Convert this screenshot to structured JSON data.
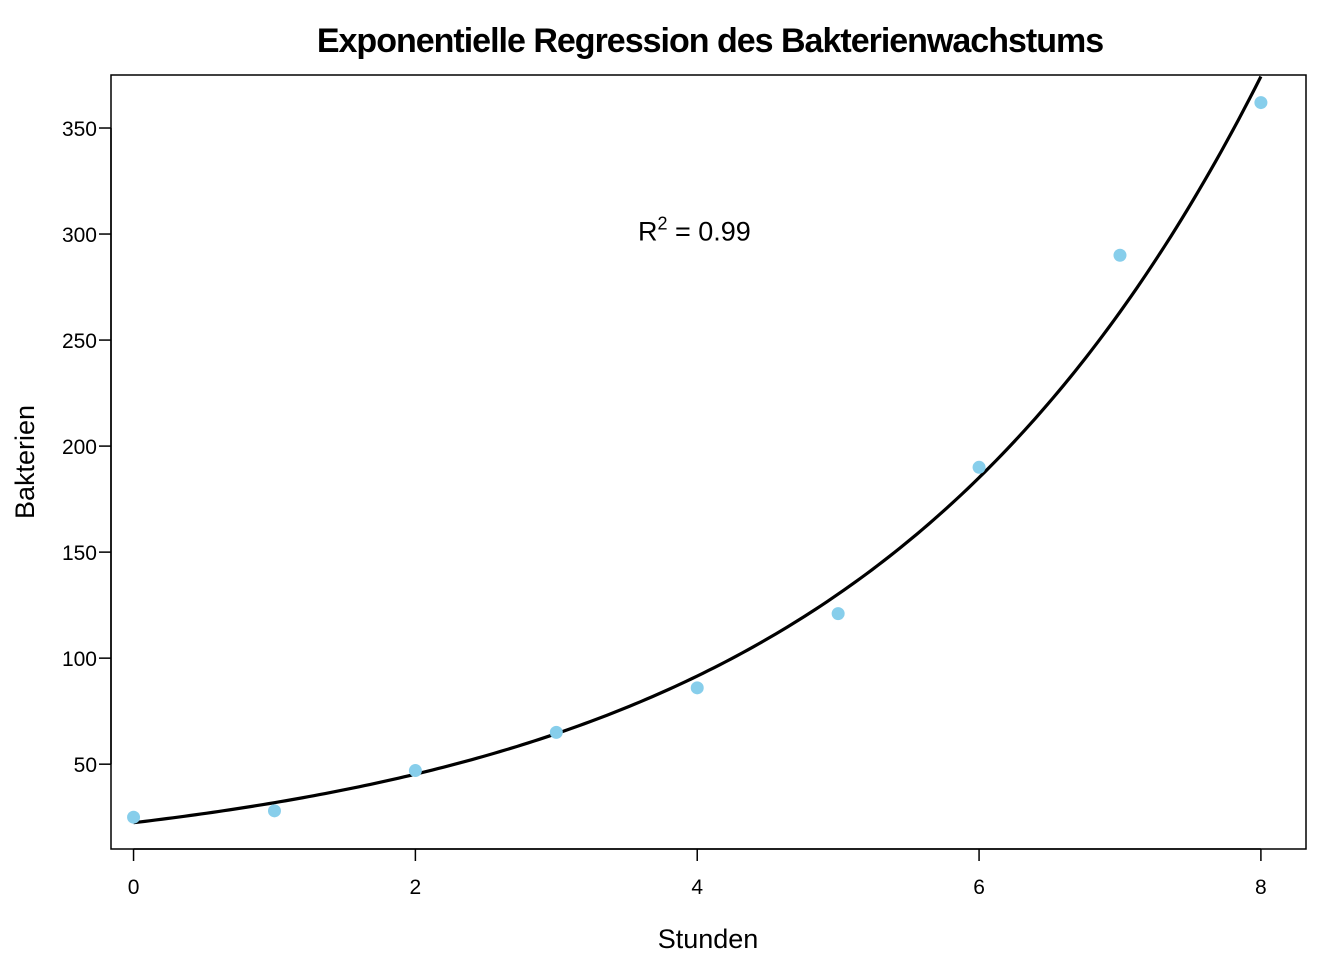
{
  "chart_data": {
    "type": "scatter",
    "title": "Exponentielle Regression des Bakterienwachstums",
    "xlabel": "Stunden",
    "ylabel": "Bakterien",
    "xlim": [
      -0.16,
      8.32
    ],
    "ylim": [
      10,
      375
    ],
    "xticks": [
      0,
      2,
      4,
      6,
      8
    ],
    "yticks": [
      50,
      100,
      150,
      200,
      250,
      300,
      350
    ],
    "grid": false,
    "point_color": "#87CEEB",
    "series": [
      {
        "x": [
          0,
          1,
          2,
          3,
          4,
          5,
          6,
          7,
          8
        ],
        "y": [
          25,
          28,
          47,
          65,
          86,
          121,
          190,
          290,
          362
        ]
      }
    ],
    "fit": {
      "model": "exponential",
      "a": 22.4,
      "b": 0.352,
      "color": "#000000",
      "x_range": [
        0,
        8
      ]
    },
    "annotation": {
      "prefix": "R",
      "sup": "2",
      "suffix": " = 0.99",
      "x": 3.98,
      "y": 297
    }
  }
}
